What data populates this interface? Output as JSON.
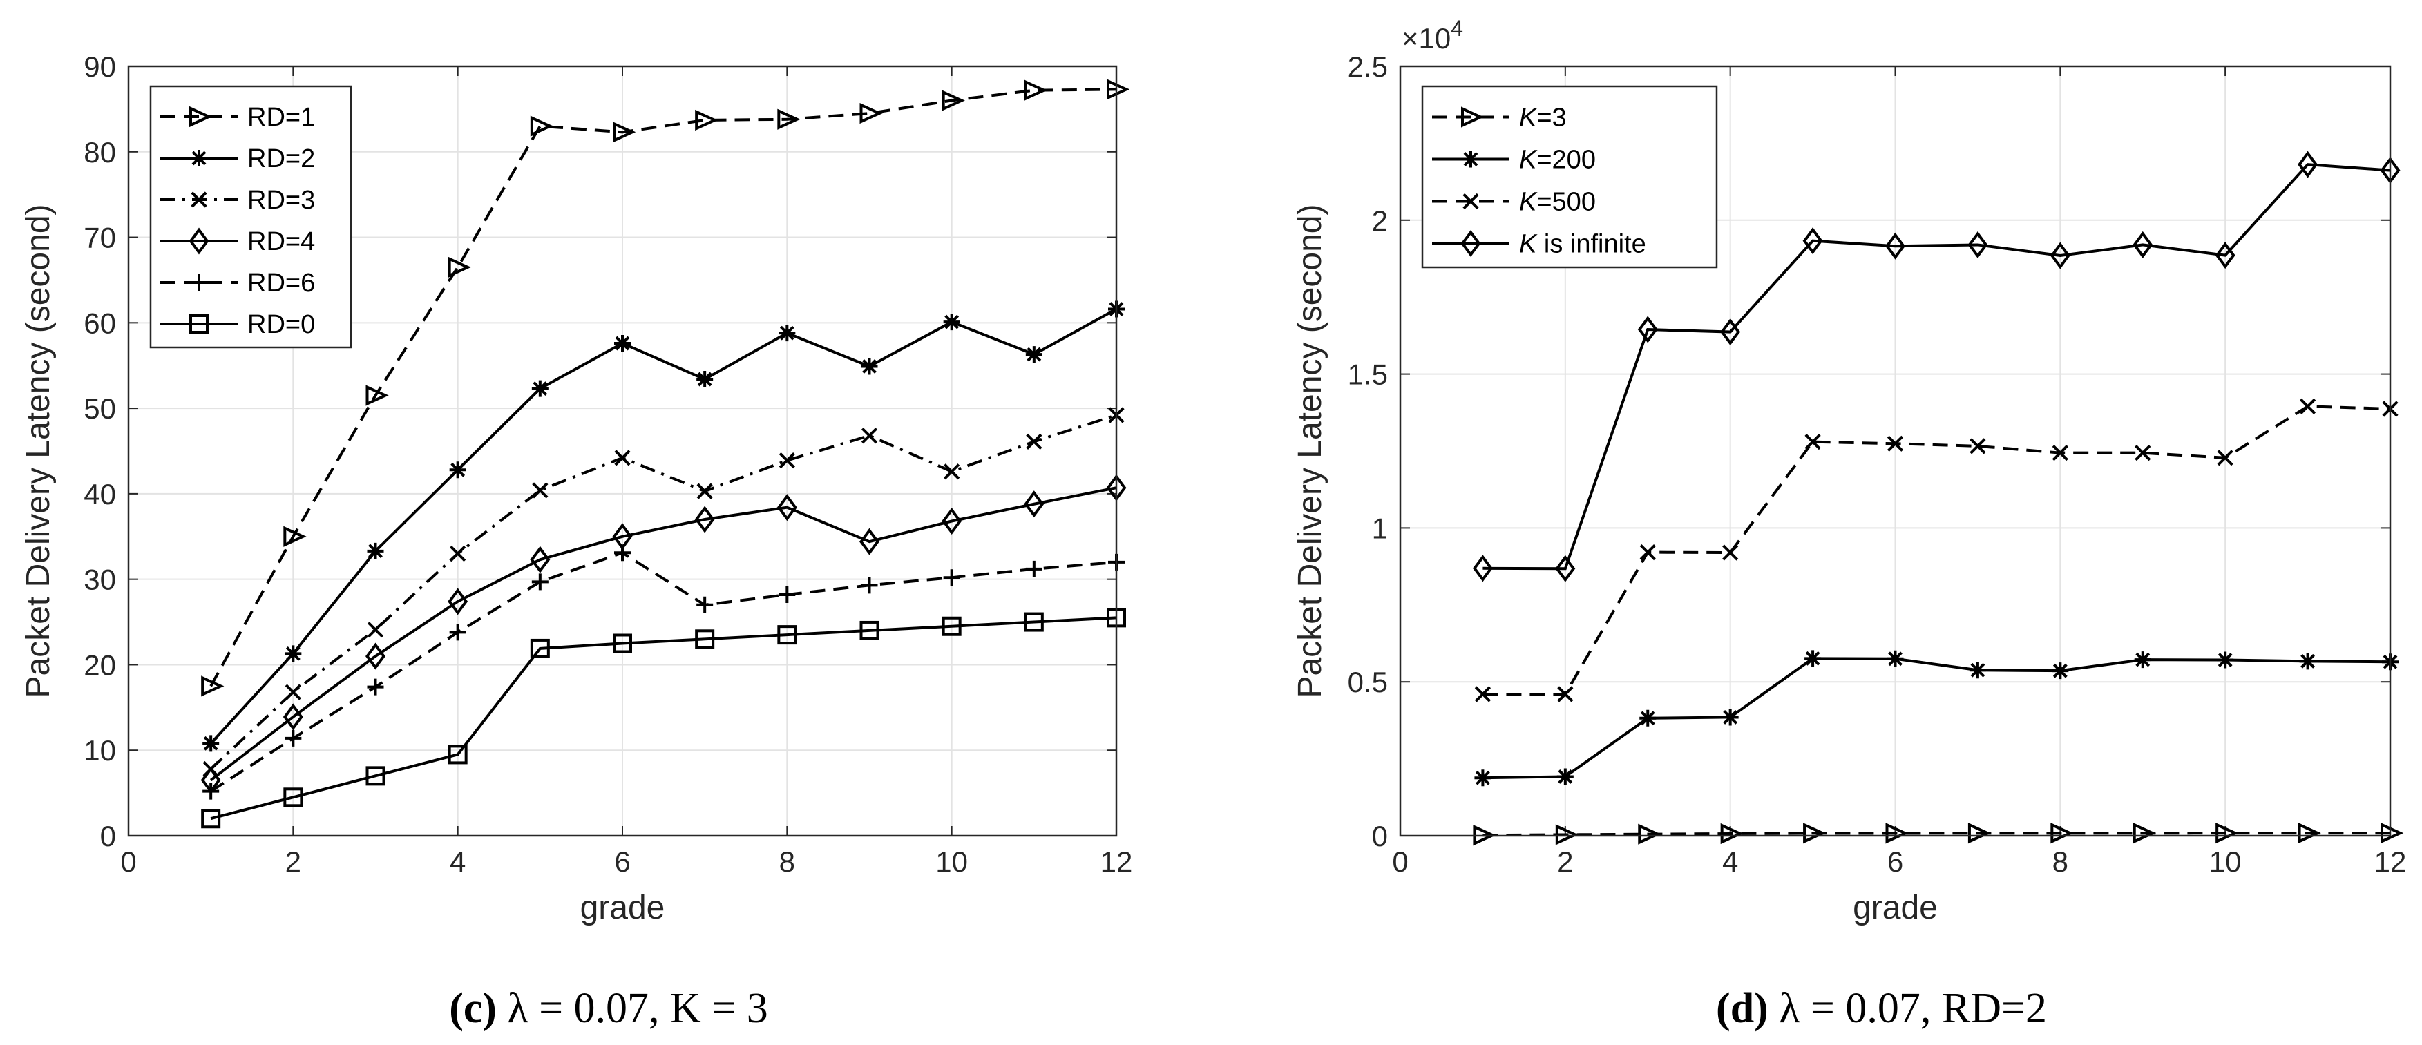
{
  "chart_data": [
    {
      "type": "line",
      "panel": "c",
      "caption_label": "(c)",
      "caption_text": "λ = 0.07, K = 3",
      "xlabel": "grade",
      "ylabel": "Packet Delivery Latency (second)",
      "xlim": [
        0,
        12
      ],
      "ylim": [
        0,
        90
      ],
      "xticks": [
        0,
        2,
        4,
        6,
        8,
        10,
        12
      ],
      "yticks": [
        0,
        10,
        20,
        30,
        40,
        50,
        60,
        70,
        80,
        90
      ],
      "grid": true,
      "legend_position": "top-left",
      "x": [
        1,
        2,
        3,
        4,
        5,
        6,
        7,
        8,
        9,
        10,
        11,
        12
      ],
      "series": [
        {
          "name": "RD=1",
          "dash": "dashed",
          "marker": "triangle-right",
          "values": [
            17.5,
            35,
            51.5,
            66.5,
            83,
            82.3,
            83.7,
            83.8,
            84.5,
            86,
            87.2,
            87.3
          ]
        },
        {
          "name": "RD=2",
          "dash": "solid",
          "marker": "asterisk",
          "values": [
            10.8,
            21.3,
            33.3,
            42.8,
            52.3,
            57.6,
            53.4,
            58.8,
            54.9,
            60.1,
            56.3,
            61.6
          ]
        },
        {
          "name": "RD=3",
          "dash": "dashdot",
          "marker": "x",
          "values": [
            7.8,
            16.8,
            24.1,
            33,
            40.4,
            44.2,
            40.3,
            43.9,
            46.8,
            42.6,
            46.1,
            49.2
          ]
        },
        {
          "name": "RD=4",
          "dash": "solid",
          "marker": "diamond",
          "values": [
            6.5,
            13.9,
            21,
            27.4,
            32.3,
            35,
            37,
            38.4,
            34.4,
            36.8,
            38.8,
            40.7
          ]
        },
        {
          "name": "RD=6",
          "dash": "dashed",
          "marker": "plus",
          "values": [
            5.2,
            11.4,
            17.4,
            23.8,
            29.7,
            33.1,
            27,
            28.2,
            29.3,
            30.2,
            31.2,
            32
          ]
        },
        {
          "name": "RD=0",
          "dash": "solid",
          "marker": "square",
          "values": [
            2,
            4.5,
            7,
            9.5,
            21.9,
            22.5,
            23,
            23.5,
            24,
            24.5,
            25,
            25.5
          ]
        }
      ]
    },
    {
      "type": "line",
      "panel": "d",
      "caption_label": "(d)",
      "caption_text": "λ = 0.07, RD=2",
      "xlabel": "grade",
      "ylabel": "Packet Delivery Latency (second)",
      "multiplier_base": "×10",
      "multiplier_exp": "4",
      "xlim": [
        0,
        12
      ],
      "ylim": [
        0,
        2.5
      ],
      "xticks": [
        0,
        2,
        4,
        6,
        8,
        10,
        12
      ],
      "yticks": [
        0,
        0.5,
        1,
        1.5,
        2,
        2.5
      ],
      "ytick_labels": [
        "0",
        "0.5",
        "1",
        "1.5",
        "2",
        "2.5"
      ],
      "grid": true,
      "legend_position": "top-left",
      "x": [
        1,
        2,
        3,
        4,
        5,
        6,
        7,
        8,
        9,
        10,
        11,
        12
      ],
      "series": [
        {
          "name_var": "K",
          "name_rest": "=3",
          "dash": "dashed",
          "marker": "triangle-right",
          "values": [
            0.0017,
            0.0035,
            0.0052,
            0.0067,
            0.0083,
            0.0082,
            0.0084,
            0.0084,
            0.0085,
            0.0086,
            0.0087,
            0.0087
          ]
        },
        {
          "name_var": "K",
          "name_rest": "=200",
          "dash": "solid",
          "marker": "asterisk",
          "values": [
            0.188,
            0.192,
            0.382,
            0.385,
            0.576,
            0.575,
            0.538,
            0.536,
            0.572,
            0.571,
            0.567,
            0.565
          ]
        },
        {
          "name_var": "K",
          "name_rest": "=500",
          "dash": "dashed",
          "marker": "x",
          "values": [
            0.46,
            0.46,
            0.921,
            0.92,
            1.28,
            1.274,
            1.266,
            1.244,
            1.244,
            1.228,
            1.395,
            1.387
          ]
        },
        {
          "name_var": "K",
          "name_rest": " is infinite",
          "dash": "solid",
          "marker": "diamond",
          "values": [
            0.869,
            0.868,
            1.645,
            1.637,
            1.933,
            1.916,
            1.92,
            1.885,
            1.92,
            1.886,
            2.181,
            2.162
          ]
        }
      ]
    }
  ]
}
